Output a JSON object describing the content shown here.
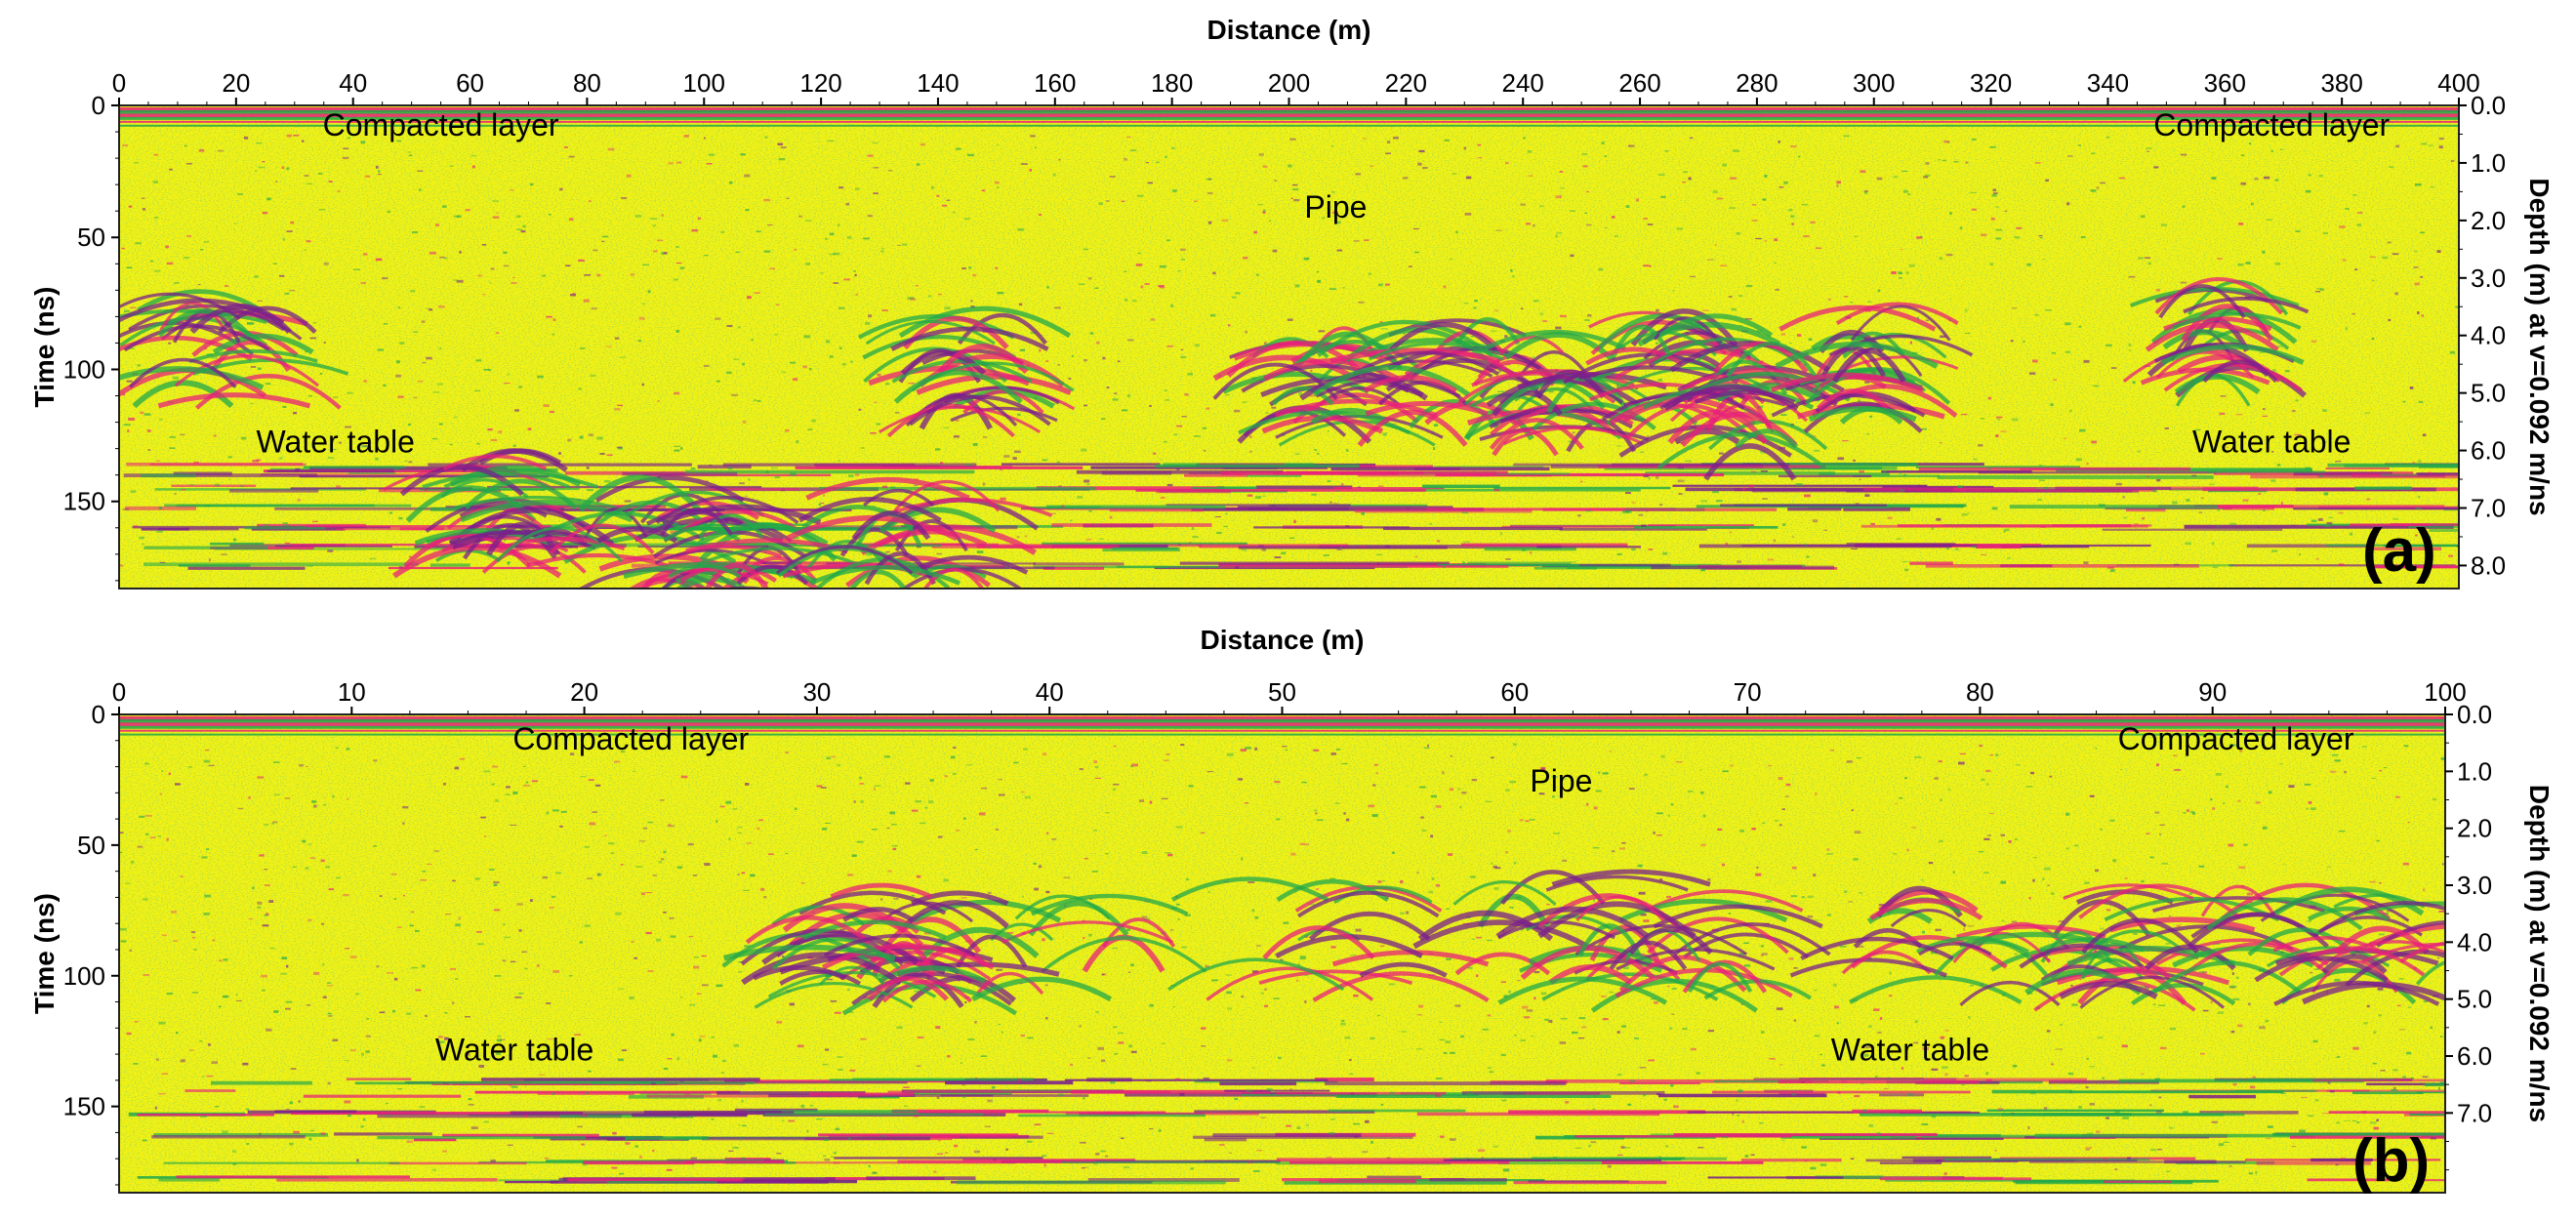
{
  "chart_data": [
    {
      "type": "heatmap",
      "panel_label": "(a)",
      "xlabel": "Distance (m)",
      "ylabel": "Time (ns)",
      "y2label": "Depth (m) at v=0.092 m/ns",
      "xlim": [
        0,
        400
      ],
      "ylim": [
        0,
        183
      ],
      "y2lim": [
        0,
        8.4
      ],
      "x_ticks": [
        "0",
        "20",
        "40",
        "60",
        "80",
        "100",
        "120",
        "140",
        "160",
        "180",
        "200",
        "220",
        "240",
        "260",
        "280",
        "300",
        "320",
        "340",
        "360",
        "380",
        "400"
      ],
      "y_ticks": [
        "0",
        "50",
        "100",
        "150"
      ],
      "y2_ticks": [
        "0.0",
        "1.0",
        "2.0",
        "3.0",
        "4.0",
        "5.0",
        "6.0",
        "7.0",
        "8.0"
      ],
      "annotations": [
        {
          "text": "Compacted layer",
          "x": 55,
          "y": 7
        },
        {
          "text": "Compacted layer",
          "x": 368,
          "y": 7
        },
        {
          "text": "Pipe",
          "x": 208,
          "y": 38
        },
        {
          "text": "Water table",
          "x": 37,
          "y": 127
        },
        {
          "text": "Water table",
          "x": 368,
          "y": 127
        }
      ],
      "colormap": [
        "#7a1f8c",
        "#e8207a",
        "#f2f20a",
        "#22a84a"
      ],
      "background_color": "#f4f211"
    },
    {
      "type": "heatmap",
      "panel_label": "(b)",
      "xlabel": "Distance (m)",
      "ylabel": "Time (ns)",
      "y2label": "Depth (m) at v=0.092 m/ns",
      "xlim": [
        0,
        100
      ],
      "ylim": [
        0,
        183
      ],
      "y2lim": [
        0,
        8.4
      ],
      "x_ticks": [
        "0",
        "10",
        "20",
        "30",
        "40",
        "50",
        "60",
        "70",
        "80",
        "90",
        "100"
      ],
      "y_ticks": [
        "0",
        "50",
        "100",
        "150"
      ],
      "y2_ticks": [
        "0.0",
        "1.0",
        "2.0",
        "3.0",
        "4.0",
        "5.0",
        "6.0",
        "7.0"
      ],
      "annotations": [
        {
          "text": "Compacted layer",
          "x": 22,
          "y": 9
        },
        {
          "text": "Compacted layer",
          "x": 91,
          "y": 9
        },
        {
          "text": "Pipe",
          "x": 62,
          "y": 25
        },
        {
          "text": "Water table",
          "x": 17,
          "y": 128
        },
        {
          "text": "Water table",
          "x": 77,
          "y": 128
        }
      ],
      "colormap": [
        "#7a1f8c",
        "#e8207a",
        "#f2f20a",
        "#22a84a"
      ],
      "background_color": "#f4f211"
    }
  ]
}
